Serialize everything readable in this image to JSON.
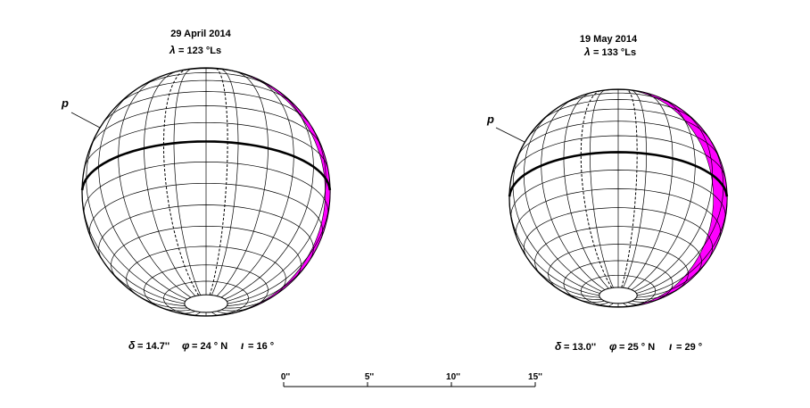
{
  "globes": [
    {
      "date": "29 April 2014",
      "lambda_symbol": "λ",
      "lambda_value": "= 123 °Ls",
      "pole_label": "p",
      "delta_symbol": "δ",
      "delta_value": "= 14.7''",
      "phi_symbol": "φ",
      "phi_value": "= 24 ° N",
      "iota_symbol": "ι",
      "iota_value": "= 16 °",
      "tilt_deg": 24,
      "phase_angle_deg": 16
    },
    {
      "date": "19 May 2014",
      "lambda_symbol": "λ",
      "lambda_value": "= 133 °Ls",
      "pole_label": "p",
      "delta_symbol": "δ",
      "delta_value": "= 13.0''",
      "phi_symbol": "φ",
      "phi_value": "= 25 ° N",
      "iota_symbol": "ι",
      "iota_value": "= 29 °",
      "tilt_deg": 25,
      "phase_angle_deg": 29
    }
  ],
  "scale_bar": {
    "ticks": [
      "0''",
      "5''",
      "10''",
      "15''"
    ]
  },
  "colors": {
    "grid": "#000000",
    "equator": "#000000",
    "terminator": "#ff00ff"
  }
}
